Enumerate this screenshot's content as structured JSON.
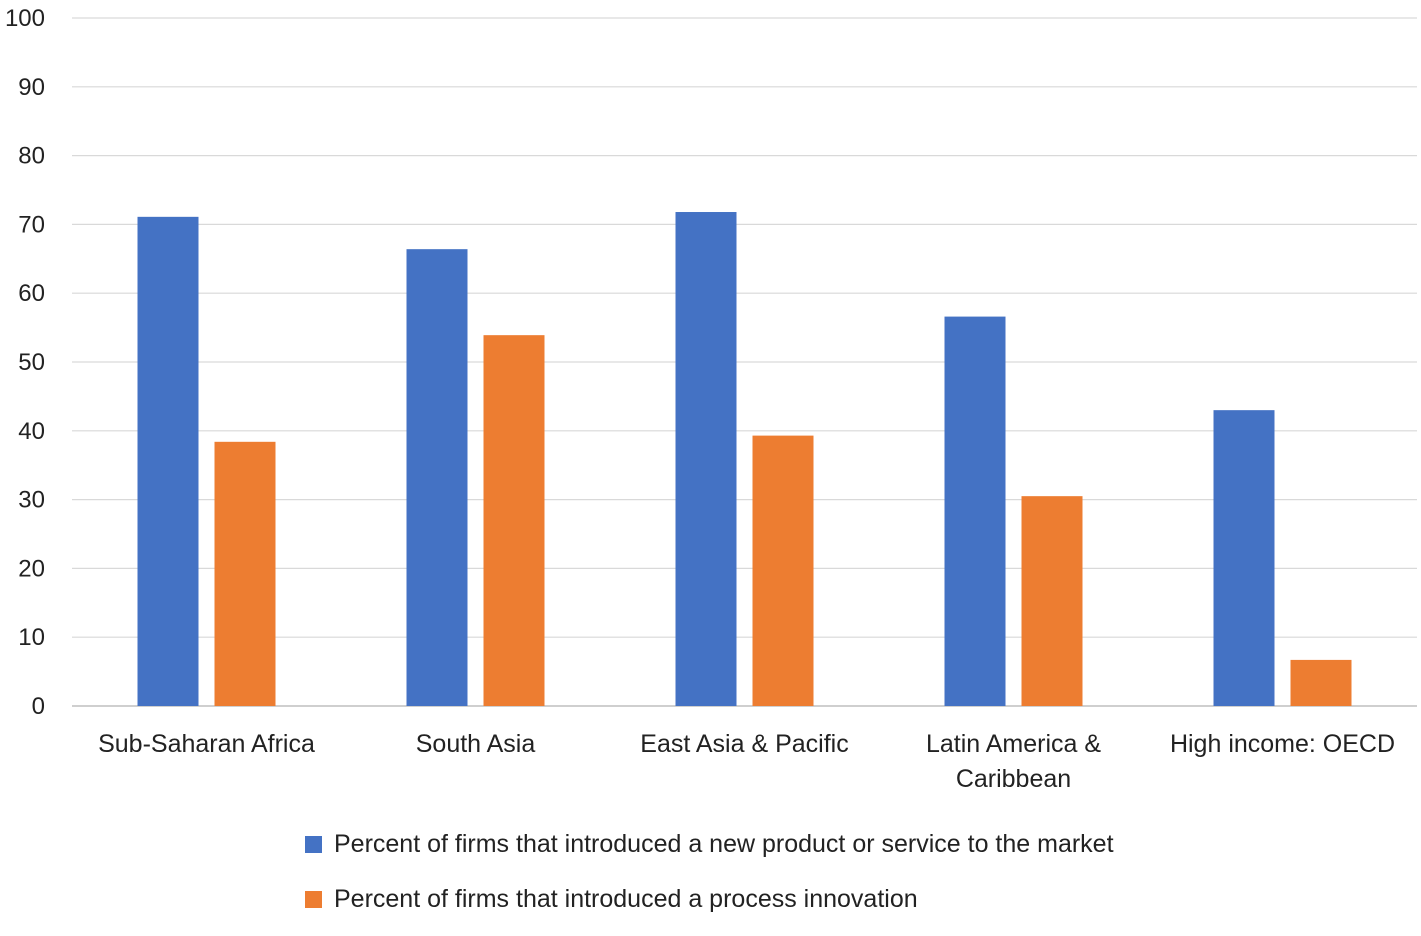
{
  "chart_data": {
    "type": "bar",
    "title": "",
    "xlabel": "",
    "ylabel": "",
    "ylim": [
      0,
      100
    ],
    "yticks": [
      0,
      10,
      20,
      30,
      40,
      50,
      60,
      70,
      80,
      90,
      100
    ],
    "grid": true,
    "legend_position": "bottom",
    "categories": [
      [
        "Sub-Saharan Africa"
      ],
      [
        "South Asia"
      ],
      [
        "East Asia & Pacific"
      ],
      [
        "Latin America &",
        "Caribbean"
      ],
      [
        "High income: OECD"
      ]
    ],
    "series": [
      {
        "name": "Percent of firms that introduced a new product or service to the market",
        "color": "#4472C4",
        "values": [
          71.1,
          66.4,
          71.8,
          56.6,
          43.0
        ]
      },
      {
        "name": "Percent of firms that introduced a process innovation",
        "color": "#ED7D31",
        "values": [
          38.4,
          53.9,
          39.3,
          30.5,
          6.7
        ]
      }
    ]
  }
}
